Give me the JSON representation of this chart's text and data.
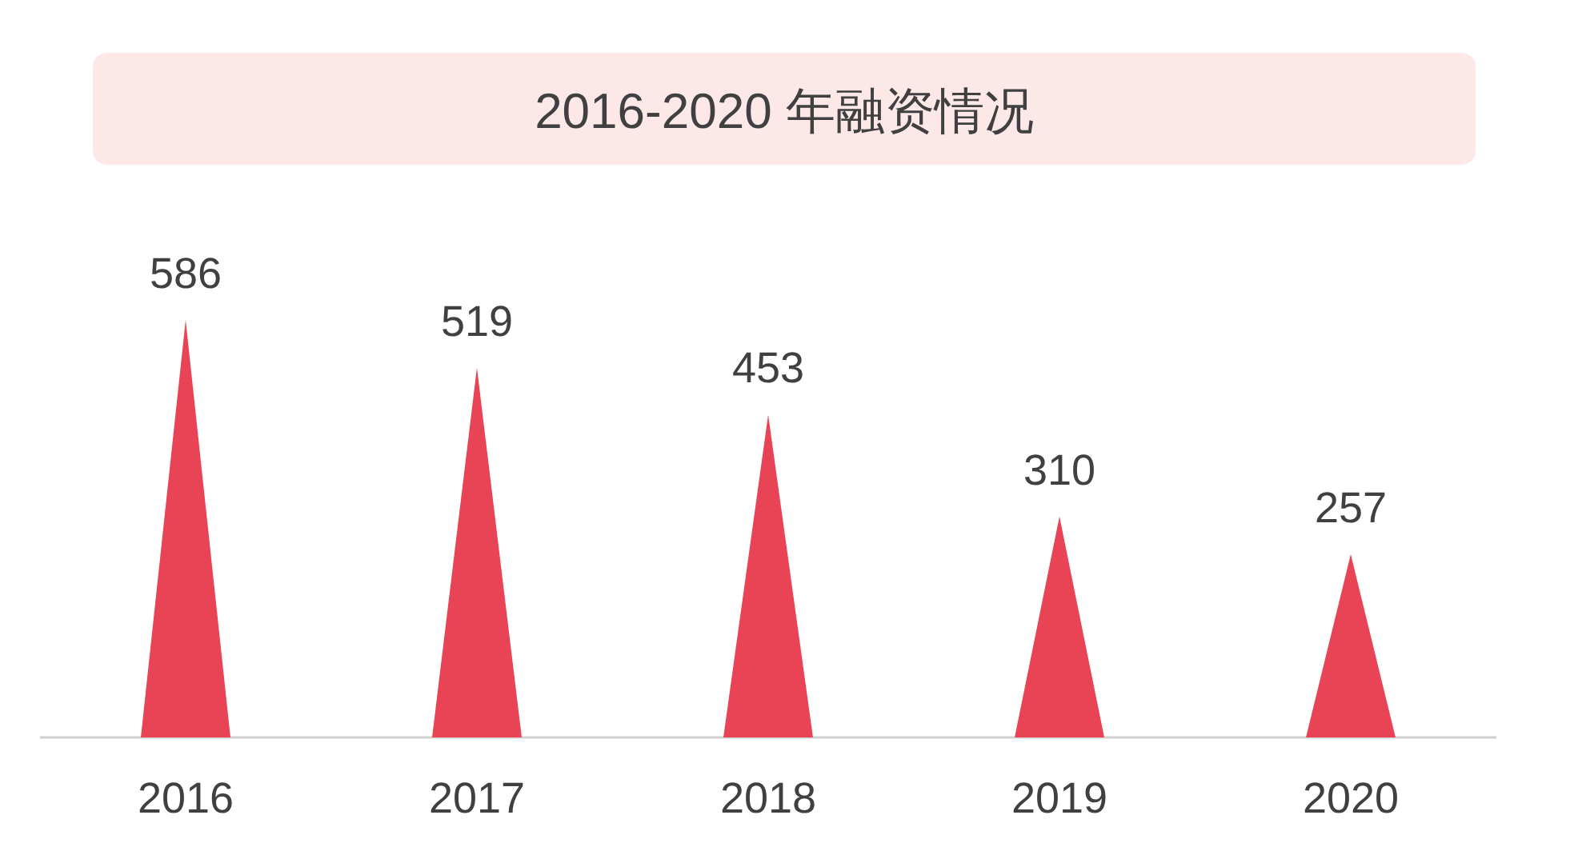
{
  "chart_data": {
    "type": "bar",
    "title": "2016-2020 年融资情况",
    "categories": [
      "2016",
      "2017",
      "2018",
      "2019",
      "2020"
    ],
    "values": [
      586,
      519,
      453,
      310,
      257
    ],
    "color": "#e84455",
    "data_labels": true
  }
}
